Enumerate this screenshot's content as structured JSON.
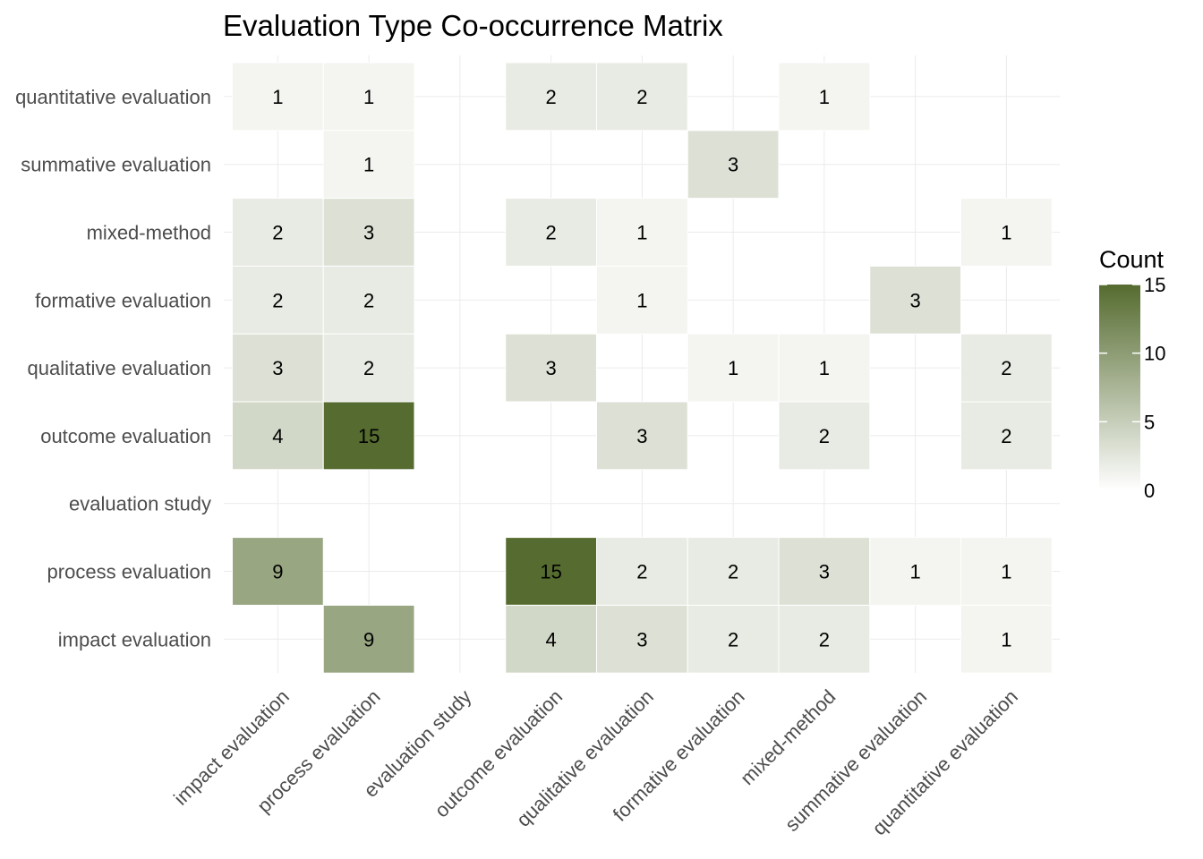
{
  "colors": {
    "low": "#ffffff",
    "high": "#556b2f",
    "grid": "#ebebeb",
    "cell_border": "#ffffff"
  },
  "chart_data": {
    "type": "heatmap",
    "title": "Evaluation Type Co-occurrence Matrix",
    "x_categories": [
      "impact evaluation",
      "process evaluation",
      "evaluation study",
      "outcome evaluation",
      "qualitative evaluation",
      "formative evaluation",
      "mixed-method",
      "summative evaluation",
      "quantitative evaluation"
    ],
    "y_categories_top_to_bottom": [
      "quantitative evaluation",
      "summative evaluation",
      "mixed-method",
      "formative evaluation",
      "qualitative evaluation",
      "outcome evaluation",
      "evaluation study",
      "process evaluation",
      "impact evaluation"
    ],
    "cells": [
      {
        "x": "impact evaluation",
        "y": "quantitative evaluation",
        "value": 1
      },
      {
        "x": "process evaluation",
        "y": "quantitative evaluation",
        "value": 1
      },
      {
        "x": "outcome evaluation",
        "y": "quantitative evaluation",
        "value": 2
      },
      {
        "x": "qualitative evaluation",
        "y": "quantitative evaluation",
        "value": 2
      },
      {
        "x": "mixed-method",
        "y": "quantitative evaluation",
        "value": 1
      },
      {
        "x": "process evaluation",
        "y": "summative evaluation",
        "value": 1
      },
      {
        "x": "formative evaluation",
        "y": "summative evaluation",
        "value": 3
      },
      {
        "x": "impact evaluation",
        "y": "mixed-method",
        "value": 2
      },
      {
        "x": "process evaluation",
        "y": "mixed-method",
        "value": 3
      },
      {
        "x": "outcome evaluation",
        "y": "mixed-method",
        "value": 2
      },
      {
        "x": "qualitative evaluation",
        "y": "mixed-method",
        "value": 1
      },
      {
        "x": "quantitative evaluation",
        "y": "mixed-method",
        "value": 1
      },
      {
        "x": "impact evaluation",
        "y": "formative evaluation",
        "value": 2
      },
      {
        "x": "process evaluation",
        "y": "formative evaluation",
        "value": 2
      },
      {
        "x": "qualitative evaluation",
        "y": "formative evaluation",
        "value": 1
      },
      {
        "x": "summative evaluation",
        "y": "formative evaluation",
        "value": 3
      },
      {
        "x": "impact evaluation",
        "y": "qualitative evaluation",
        "value": 3
      },
      {
        "x": "process evaluation",
        "y": "qualitative evaluation",
        "value": 2
      },
      {
        "x": "outcome evaluation",
        "y": "qualitative evaluation",
        "value": 3
      },
      {
        "x": "formative evaluation",
        "y": "qualitative evaluation",
        "value": 1
      },
      {
        "x": "mixed-method",
        "y": "qualitative evaluation",
        "value": 1
      },
      {
        "x": "quantitative evaluation",
        "y": "qualitative evaluation",
        "value": 2
      },
      {
        "x": "impact evaluation",
        "y": "outcome evaluation",
        "value": 4
      },
      {
        "x": "process evaluation",
        "y": "outcome evaluation",
        "value": 15
      },
      {
        "x": "qualitative evaluation",
        "y": "outcome evaluation",
        "value": 3
      },
      {
        "x": "mixed-method",
        "y": "outcome evaluation",
        "value": 2
      },
      {
        "x": "quantitative evaluation",
        "y": "outcome evaluation",
        "value": 2
      },
      {
        "x": "impact evaluation",
        "y": "process evaluation",
        "value": 9
      },
      {
        "x": "outcome evaluation",
        "y": "process evaluation",
        "value": 15
      },
      {
        "x": "qualitative evaluation",
        "y": "process evaluation",
        "value": 2
      },
      {
        "x": "formative evaluation",
        "y": "process evaluation",
        "value": 2
      },
      {
        "x": "mixed-method",
        "y": "process evaluation",
        "value": 3
      },
      {
        "x": "summative evaluation",
        "y": "process evaluation",
        "value": 1
      },
      {
        "x": "quantitative evaluation",
        "y": "process evaluation",
        "value": 1
      },
      {
        "x": "process evaluation",
        "y": "impact evaluation",
        "value": 9
      },
      {
        "x": "outcome evaluation",
        "y": "impact evaluation",
        "value": 4
      },
      {
        "x": "qualitative evaluation",
        "y": "impact evaluation",
        "value": 3
      },
      {
        "x": "formative evaluation",
        "y": "impact evaluation",
        "value": 2
      },
      {
        "x": "mixed-method",
        "y": "impact evaluation",
        "value": 2
      },
      {
        "x": "quantitative evaluation",
        "y": "impact evaluation",
        "value": 1
      }
    ],
    "legend": {
      "title": "Count",
      "min": 0,
      "max": 15,
      "ticks": [
        0,
        5,
        10,
        15
      ],
      "placement": "right"
    },
    "grid": true
  }
}
